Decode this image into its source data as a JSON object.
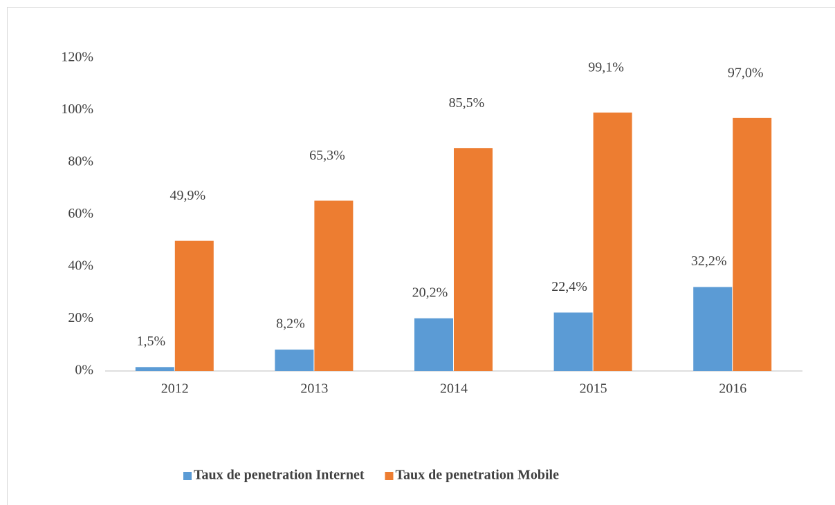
{
  "chart_data": {
    "type": "bar",
    "categories": [
      "2012",
      "2013",
      "2014",
      "2015",
      "2016"
    ],
    "series": [
      {
        "name": "Taux de penetration Internet",
        "color": "#5b9bd5",
        "values": [
          1.5,
          8.2,
          20.2,
          22.4,
          32.2
        ],
        "value_labels": [
          "1,5%",
          "8,2%",
          "20,2%",
          "22,4%",
          "32,2%"
        ]
      },
      {
        "name": "Taux de penetration Mobile",
        "color": "#ed7d31",
        "values": [
          49.9,
          65.3,
          85.5,
          99.1,
          97.0
        ],
        "value_labels": [
          "49,9%",
          "65,3%",
          "85,5%",
          "99,1%",
          "97,0%"
        ]
      }
    ],
    "ylim": [
      0,
      120
    ],
    "yticks": [
      {
        "value": 0,
        "label": "0%"
      },
      {
        "value": 20,
        "label": "20%"
      },
      {
        "value": 40,
        "label": "40%"
      },
      {
        "value": 60,
        "label": "60%"
      },
      {
        "value": 80,
        "label": "80%"
      },
      {
        "value": 100,
        "label": "100%"
      },
      {
        "value": 120,
        "label": "120%"
      }
    ],
    "grid": false,
    "legend": "bottom"
  }
}
